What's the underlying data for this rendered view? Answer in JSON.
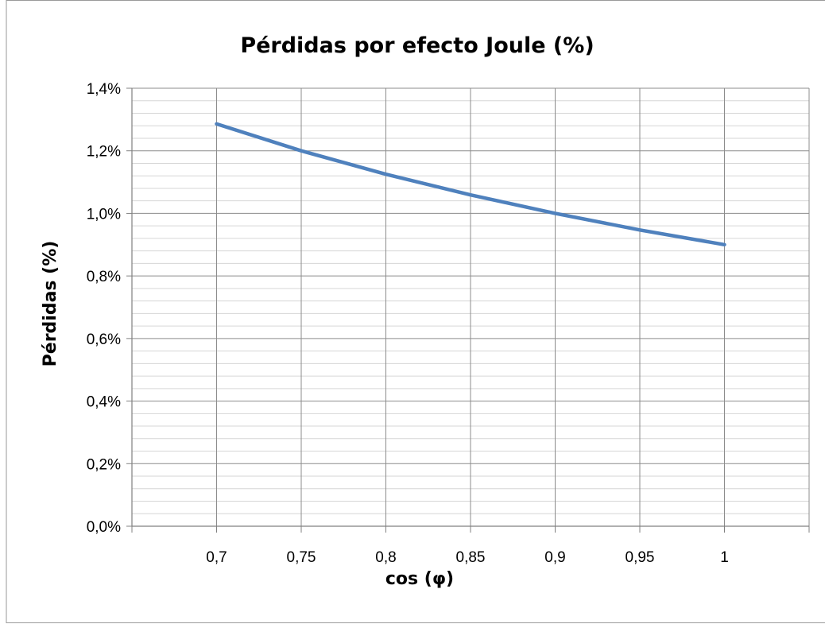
{
  "chart_data": {
    "type": "line",
    "title": "Pérdidas por efecto Joule (%)",
    "xlabel": "cos (φ)",
    "ylabel": "Pérdidas (%)",
    "x_ticks": [
      "0,7",
      "0,75",
      "0,8",
      "0,85",
      "0,9",
      "0,95",
      "1"
    ],
    "y_ticks": [
      "0,0%",
      "0,2%",
      "0,4%",
      "0,6%",
      "0,8%",
      "1,0%",
      "1,2%",
      "1,4%"
    ],
    "xlim": [
      0.65,
      1.05
    ],
    "ylim": [
      0,
      1.4
    ],
    "grid": true,
    "series": [
      {
        "color": "#4f81bd",
        "x": [
          0.7,
          0.75,
          0.8,
          0.85,
          0.9,
          0.95,
          1.0
        ],
        "y": [
          1.286,
          1.2,
          1.125,
          1.059,
          1.0,
          0.947,
          0.9
        ]
      }
    ]
  }
}
